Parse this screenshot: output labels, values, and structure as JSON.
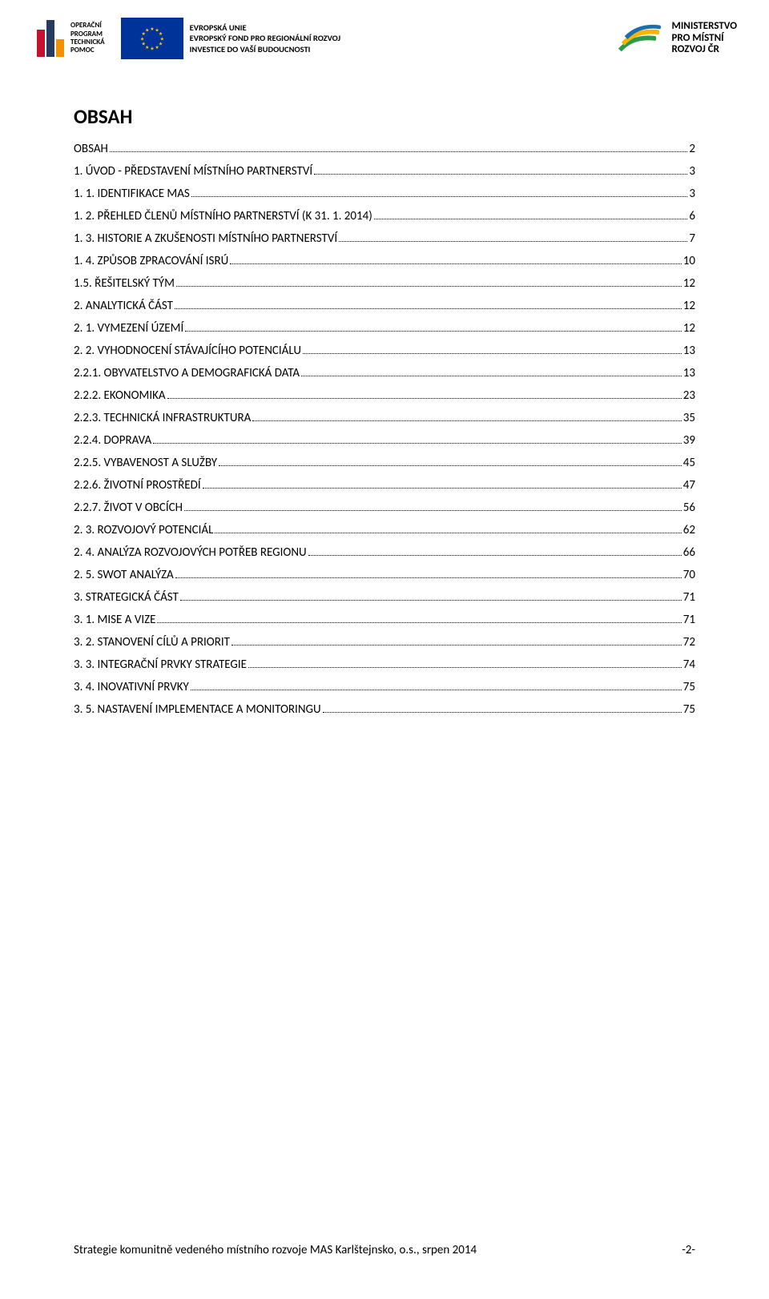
{
  "header": {
    "optp": {
      "line1": "OPERAČNÍ",
      "line2": "PROGRAM",
      "line3": "TECHNICKÁ",
      "line4": "POMOC",
      "bar_colors": [
        "#c4122f",
        "#273a60",
        "#f39200"
      ]
    },
    "eu": {
      "line1": "EVROPSKÁ UNIE",
      "line2": "EVROPSKÝ FOND PRO REGIONÁLNÍ ROZVOJ",
      "line3": "INVESTICE DO VAŠÍ BUDOUCNOSTI",
      "flag_bg": "#003399",
      "star_color": "#ffcc00"
    },
    "mmr": {
      "line1": "MINISTERSTVO",
      "line2": "PRO MÍSTNÍ",
      "line3": "ROZVOJ ČR",
      "swoosh_colors": [
        "#2a9b47",
        "#f7b500",
        "#1a6fb3"
      ]
    }
  },
  "title": "OBSAH",
  "toc": [
    {
      "label": "OBSAH",
      "page": "2"
    },
    {
      "label": "1. ÚVOD - PŘEDSTAVENÍ MÍSTNÍHO PARTNERSTVÍ",
      "page": "3"
    },
    {
      "label": "1. 1. IDENTIFIKACE MAS",
      "page": "3"
    },
    {
      "label": "1. 2. PŘEHLED ČLENŮ MÍSTNÍHO PARTNERSTVÍ (K 31. 1. 2014)",
      "page": "6"
    },
    {
      "label": "1. 3. HISTORIE A ZKUŠENOSTI MÍSTNÍHO PARTNERSTVÍ",
      "page": "7"
    },
    {
      "label": "1. 4. ZPŮSOB ZPRACOVÁNÍ ISRÚ",
      "page": "10"
    },
    {
      "label": "1.5. ŘEŠITELSKÝ TÝM",
      "page": "12"
    },
    {
      "label": "2. ANALYTICKÁ ČÁST",
      "page": "12"
    },
    {
      "label": "2. 1. VYMEZENÍ ÚZEMÍ",
      "page": "12"
    },
    {
      "label": "2. 2. VYHODNOCENÍ STÁVAJÍCÍHO POTENCIÁLU",
      "page": "13"
    },
    {
      "label": "2.2.1. OBYVATELSTVO A DEMOGRAFICKÁ DATA",
      "page": "13"
    },
    {
      "label": "2.2.2. EKONOMIKA",
      "page": "23"
    },
    {
      "label": "2.2.3. TECHNICKÁ INFRASTRUKTURA",
      "page": "35"
    },
    {
      "label": "2.2.4. DOPRAVA",
      "page": "39"
    },
    {
      "label": "2.2.5. VYBAVENOST A SLUŽBY",
      "page": "45"
    },
    {
      "label": "2.2.6. ŽIVOTNÍ PROSTŘEDÍ",
      "page": "47"
    },
    {
      "label": "2.2.7. ŽIVOT V OBCÍCH",
      "page": "56"
    },
    {
      "label": "2. 3. ROZVOJOVÝ POTENCIÁL",
      "page": "62"
    },
    {
      "label": "2. 4. ANALÝZA ROZVOJOVÝCH POTŘEB REGIONU",
      "page": "66"
    },
    {
      "label": "2. 5. SWOT ANALÝZA",
      "page": "70"
    },
    {
      "label": "3. STRATEGICKÁ ČÁST",
      "page": "71"
    },
    {
      "label": "3. 1. MISE A VIZE",
      "page": "71"
    },
    {
      "label": "3. 2. STANOVENÍ CÍLŮ A PRIORIT",
      "page": "72"
    },
    {
      "label": "3. 3. INTEGRAČNÍ PRVKY STRATEGIE",
      "page": "74"
    },
    {
      "label": "3. 4. INOVATIVNÍ PRVKY",
      "page": "75"
    },
    {
      "label": "3. 5. NASTAVENÍ IMPLEMENTACE A MONITORINGU",
      "page": "75"
    }
  ],
  "footer": {
    "left": "Strategie komunitně vedeného místního rozvoje MAS Karlštejnsko, o.s., srpen 2014",
    "right": "-2-"
  }
}
